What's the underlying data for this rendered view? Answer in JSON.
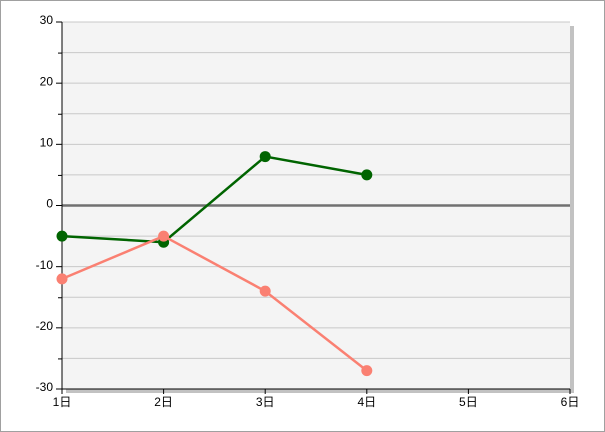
{
  "chart_data": {
    "type": "line",
    "categories": [
      "1日",
      "2日",
      "3日",
      "4日",
      "5日",
      "6日"
    ],
    "series": [
      {
        "color": "#006400",
        "values": [
          -5,
          -6,
          8,
          5,
          null,
          null
        ]
      },
      {
        "color": "#fa8072",
        "values": [
          -12,
          -5,
          -14,
          -27,
          null,
          null
        ]
      }
    ],
    "ylim": [
      -30,
      30
    ],
    "yticks": [
      -30,
      -20,
      -10,
      0,
      10,
      20,
      30
    ],
    "minor_yticks": [
      -25,
      -15,
      -5,
      5,
      15,
      25
    ],
    "grid": true,
    "zero_line": true
  }
}
